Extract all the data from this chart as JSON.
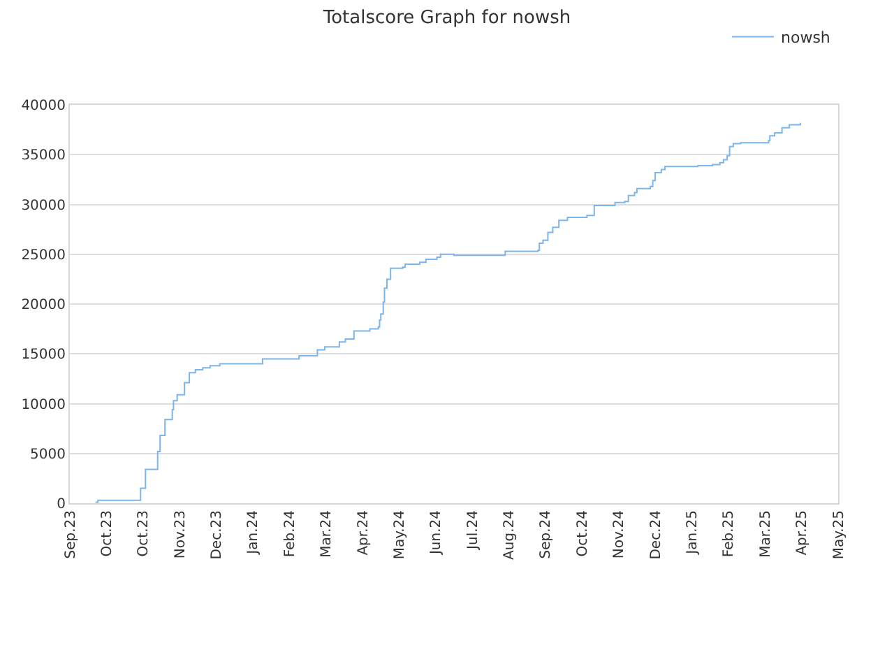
{
  "chart_data": {
    "type": "step",
    "title": "Totalscore Graph for nowsh",
    "legend": "top right",
    "grid": "y",
    "marker": "none",
    "line_style": "solid",
    "xlim": [
      "2023-09-01",
      "2025-05-23"
    ],
    "xticks": [
      {
        "value": "2023-09-01",
        "label": "Sep.23"
      },
      {
        "value": "2023-10-01",
        "label": "Oct.23"
      },
      {
        "value": "2023-10-31",
        "label": "Oct.23"
      },
      {
        "value": "2023-11-30",
        "label": "Nov.23"
      },
      {
        "value": "2023-12-30",
        "label": "Dec.23"
      },
      {
        "value": "2024-01-29",
        "label": "Jan.24"
      },
      {
        "value": "2024-02-28",
        "label": "Feb.24"
      },
      {
        "value": "2024-03-29",
        "label": "Mar.24"
      },
      {
        "value": "2024-04-28",
        "label": "Apr.24"
      },
      {
        "value": "2024-05-28",
        "label": "May.24"
      },
      {
        "value": "2024-06-27",
        "label": "Jun.24"
      },
      {
        "value": "2024-07-27",
        "label": "Jul.24"
      },
      {
        "value": "2024-08-26",
        "label": "Aug.24"
      },
      {
        "value": "2024-09-25",
        "label": "Sep.24"
      },
      {
        "value": "2024-10-25",
        "label": "Oct.24"
      },
      {
        "value": "2024-11-24",
        "label": "Nov.24"
      },
      {
        "value": "2024-12-24",
        "label": "Dec.24"
      },
      {
        "value": "2025-01-23",
        "label": "Jan.25"
      },
      {
        "value": "2025-02-22",
        "label": "Feb.25"
      },
      {
        "value": "2025-03-24",
        "label": "Mar.25"
      },
      {
        "value": "2025-04-23",
        "label": "Apr.25"
      },
      {
        "value": "2025-05-23",
        "label": "May.25"
      }
    ],
    "ylim": [
      0,
      40000
    ],
    "yticks": [
      0,
      5000,
      10000,
      15000,
      20000,
      25000,
      30000,
      35000,
      40000
    ],
    "series": [
      {
        "name": "nowsh",
        "color": "#7cb5ec",
        "x": [
          "2023-09-22",
          "2023-09-24",
          "2023-10-29",
          "2023-11-02",
          "2023-11-11",
          "2023-11-12",
          "2023-11-14",
          "2023-11-18",
          "2023-11-24",
          "2023-11-25",
          "2023-11-28",
          "2023-12-02",
          "2023-12-04",
          "2023-12-08",
          "2023-12-13",
          "2023-12-19",
          "2023-12-25",
          "2024-01-02",
          "2024-01-31",
          "2024-02-06",
          "2024-03-02",
          "2024-03-07",
          "2024-03-21",
          "2024-03-22",
          "2024-03-28",
          "2024-04-06",
          "2024-04-09",
          "2024-04-14",
          "2024-04-21",
          "2024-05-01",
          "2024-05-04",
          "2024-05-11",
          "2024-05-12",
          "2024-05-13",
          "2024-05-15",
          "2024-05-16",
          "2024-05-18",
          "2024-05-21",
          "2024-05-31",
          "2024-06-02",
          "2024-06-14",
          "2024-06-19",
          "2024-06-28",
          "2024-07-01",
          "2024-07-10",
          "2024-07-12",
          "2024-08-21",
          "2024-08-23",
          "2024-09-19",
          "2024-09-20",
          "2024-09-23",
          "2024-09-27",
          "2024-10-01",
          "2024-10-06",
          "2024-10-13",
          "2024-10-29",
          "2024-11-02",
          "2024-11-04",
          "2024-11-17",
          "2024-11-21",
          "2024-11-29",
          "2024-12-02",
          "2024-12-07",
          "2024-12-09",
          "2024-12-20",
          "2024-12-22",
          "2024-12-24",
          "2024-12-29",
          "2025-01-01",
          "2025-01-17",
          "2025-01-28",
          "2025-02-09",
          "2025-02-15",
          "2025-02-18",
          "2025-02-21",
          "2025-02-23",
          "2025-02-26",
          "2025-03-04",
          "2025-03-27",
          "2025-03-28",
          "2025-04-01",
          "2025-04-07",
          "2025-04-13",
          "2025-04-22"
        ],
        "values": [
          100,
          300,
          1500,
          3400,
          3400,
          5200,
          6800,
          8400,
          9400,
          10300,
          10900,
          10900,
          12100,
          13100,
          13400,
          13600,
          13800,
          14000,
          14000,
          14500,
          14500,
          14800,
          14800,
          15400,
          15700,
          15700,
          16200,
          16500,
          17300,
          17300,
          17500,
          17700,
          18400,
          19000,
          20200,
          21600,
          22500,
          23600,
          23700,
          24000,
          24200,
          24500,
          24700,
          25000,
          25000,
          24900,
          24900,
          25300,
          25400,
          26100,
          26400,
          27200,
          27700,
          28400,
          28700,
          28900,
          28900,
          29900,
          29900,
          30200,
          30300,
          30900,
          31200,
          31600,
          31800,
          32400,
          33200,
          33500,
          33800,
          33800,
          33900,
          34000,
          34200,
          34500,
          34900,
          35800,
          36100,
          36200,
          36400,
          36900,
          37200,
          37700,
          38000,
          38200
        ]
      }
    ]
  }
}
